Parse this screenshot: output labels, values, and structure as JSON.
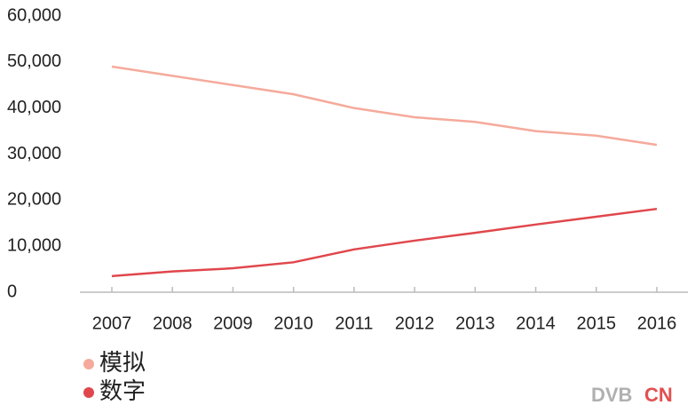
{
  "chart_data": {
    "type": "line",
    "categories": [
      "2007",
      "2008",
      "2009",
      "2010",
      "2011",
      "2012",
      "2013",
      "2014",
      "2015",
      "2016"
    ],
    "series": [
      {
        "name": "模拟",
        "color": "#f5aa9b",
        "values": [
          49000,
          47000,
          45000,
          43000,
          40000,
          38000,
          37000,
          35000,
          34000,
          32000
        ]
      },
      {
        "name": "数字",
        "color": "#e0474c",
        "values": [
          3500,
          4500,
          5200,
          6500,
          9300,
          11200,
          12900,
          14700,
          16400,
          18100
        ]
      }
    ],
    "ylim": [
      0,
      60000
    ],
    "yticks": [
      0,
      {
        "value": 10000,
        "label": "10,000"
      },
      {
        "value": 20000,
        "label": "20,000"
      },
      {
        "value": 30000,
        "label": "30,000"
      },
      {
        "value": 40000,
        "label": "40,000"
      },
      {
        "value": 50000,
        "label": "50,000"
      },
      {
        "value": 60000,
        "label": "60,000"
      }
    ],
    "grid": false,
    "legend": "bottom-left"
  },
  "watermark": {
    "left": "DVB",
    "right": "CN"
  }
}
